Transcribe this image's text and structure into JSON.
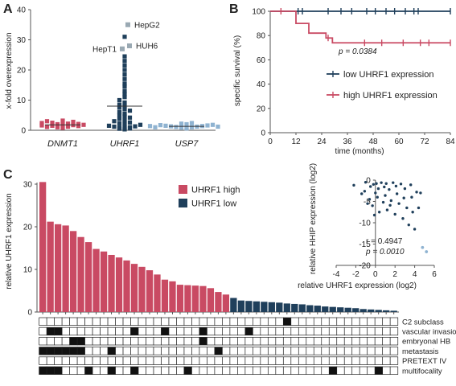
{
  "colors": {
    "red": "#c94a63",
    "navy": "#1f3f5b",
    "light_blue": "#8fb3d1",
    "grey_marker": "#9aa9b3",
    "axis": "#555555"
  },
  "chart_data": [
    {
      "panel": "A",
      "type": "scatter",
      "ylabel": "x-fold overexpression",
      "ylim": [
        0,
        40
      ],
      "yticks": [
        0,
        10,
        20,
        30,
        40
      ],
      "categories": [
        "DNMT1",
        "UHRF1",
        "USP7"
      ],
      "series": [
        {
          "category": "DNMT1",
          "values": [
            0.8,
            1.0,
            1.2,
            1.5,
            1.7,
            1.9,
            2.0,
            2.2,
            2.5,
            2.8,
            3.0,
            3.2,
            1.1,
            1.4,
            1.6,
            1.8,
            2.1,
            2.4
          ],
          "mean": 1.8
        },
        {
          "category": "UHRF1",
          "values": [
            0.3,
            0.5,
            0.6,
            0.8,
            0.9,
            1.0,
            1.2,
            1.3,
            1.5,
            1.8,
            2.0,
            2.3,
            2.6,
            3.0,
            3.3,
            3.8,
            4.2,
            4.6,
            5.0,
            5.5,
            6.0,
            6.5,
            7.0,
            7.5,
            8.0,
            8.5,
            9.2,
            10.0,
            11.0,
            12.0,
            13.0,
            14.5,
            15.5,
            17.0,
            18.5,
            20.0,
            21.5,
            23.0,
            24.5,
            31.0
          ],
          "mean": 8.0,
          "outliers": [
            {
              "label": "HepG2",
              "value": 35
            },
            {
              "label": "HUH6",
              "value": 28
            },
            {
              "label": "HepT1",
              "value": 27
            }
          ]
        },
        {
          "category": "USP7",
          "values": [
            0.6,
            0.8,
            0.9,
            1.0,
            1.1,
            1.2,
            1.3,
            1.4,
            1.5,
            1.6,
            1.7,
            1.8,
            2.0,
            2.2,
            2.4,
            1.0,
            1.2,
            1.4
          ],
          "mean": 1.3
        }
      ]
    },
    {
      "panel": "B",
      "type": "line",
      "xlabel": "time (months)",
      "ylabel": "specific survival (%)",
      "xlim": [
        0,
        84
      ],
      "ylim": [
        0,
        100
      ],
      "xticks": [
        0,
        12,
        24,
        36,
        48,
        60,
        72,
        84
      ],
      "yticks": [
        0,
        20,
        40,
        60,
        80,
        100
      ],
      "annotation": "p = 0.0384",
      "series": [
        {
          "name": "low UHRF1 expression",
          "steps": [
            [
              0,
              100
            ],
            [
              84,
              100
            ]
          ],
          "censor_times": [
            13,
            15,
            27,
            33,
            38,
            45,
            49,
            54,
            58,
            63,
            67,
            69,
            84
          ]
        },
        {
          "name": "high UHRF1 expression",
          "steps": [
            [
              0,
              100
            ],
            [
              12,
              100
            ],
            [
              12,
              90
            ],
            [
              18,
              90
            ],
            [
              18,
              82
            ],
            [
              26,
              82
            ],
            [
              26,
              78
            ],
            [
              29,
              78
            ],
            [
              29,
              74
            ],
            [
              84,
              74
            ]
          ],
          "censor_times": [
            5,
            27,
            44,
            52,
            62,
            70,
            74,
            84
          ]
        }
      ]
    },
    {
      "panel": "C",
      "type": "bar",
      "ylabel": "relative UHRF1 expression",
      "ylim": [
        0,
        30
      ],
      "yticks": [
        0,
        10,
        20,
        30
      ],
      "legend": [
        "UHRF1 high",
        "UHRF1 low"
      ],
      "values": [
        30.5,
        21.2,
        20.6,
        20.3,
        19.0,
        17.6,
        16.4,
        14.8,
        14.2,
        13.4,
        12.8,
        12.1,
        11.3,
        10.6,
        9.8,
        8.8,
        7.6,
        7.2,
        6.4,
        6.3,
        6.2,
        6.1,
        5.6,
        4.7,
        4.1,
        3.3,
        2.7,
        2.6,
        2.5,
        2.4,
        2.3,
        2.2,
        2.0,
        1.9,
        1.8,
        1.6,
        1.5,
        1.3,
        1.2,
        1.1,
        1.0,
        0.9,
        0.7,
        0.6,
        0.5,
        0.4,
        0.3
      ],
      "high_count": 25,
      "row_labels": [
        "C2 subclass",
        "vascular invasion",
        "embryonal HB",
        "metastasis",
        "PRETEXT IV",
        "multifocality"
      ],
      "matrix": [
        [
          0,
          0,
          0,
          0,
          0,
          0,
          0,
          0,
          0,
          0,
          0,
          0,
          0,
          0,
          0,
          0,
          0,
          0,
          0,
          0,
          0,
          0,
          0,
          0,
          0,
          0,
          0,
          0,
          0,
          0,
          0,
          0,
          1,
          0,
          0,
          0,
          0,
          0,
          0,
          0,
          0,
          0,
          0,
          0,
          0,
          0,
          0
        ],
        [
          0,
          1,
          1,
          0,
          0,
          0,
          0,
          0,
          0,
          0,
          0,
          0,
          1,
          0,
          0,
          0,
          1,
          0,
          0,
          0,
          0,
          1,
          0,
          0,
          0,
          0,
          0,
          1,
          0,
          0,
          0,
          0,
          0,
          0,
          0,
          0,
          0,
          0,
          0,
          0,
          0,
          0,
          0,
          0,
          0,
          0,
          0
        ],
        [
          0,
          0,
          0,
          0,
          1,
          1,
          0,
          0,
          0,
          0,
          0,
          0,
          0,
          0,
          0,
          0,
          0,
          0,
          0,
          0,
          0,
          1,
          0,
          0,
          0,
          0,
          0,
          0,
          0,
          0,
          0,
          0,
          0,
          0,
          0,
          0,
          0,
          0,
          0,
          0,
          0,
          0,
          0,
          0,
          0,
          0,
          0
        ],
        [
          1,
          1,
          1,
          1,
          1,
          1,
          0,
          0,
          0,
          1,
          0,
          0,
          0,
          0,
          0,
          0,
          0,
          0,
          0,
          0,
          0,
          0,
          0,
          1,
          0,
          0,
          0,
          0,
          0,
          0,
          0,
          0,
          0,
          0,
          0,
          0,
          0,
          0,
          0,
          0,
          0,
          0,
          0,
          0,
          0,
          0,
          0
        ],
        [
          0,
          0,
          0,
          0,
          0,
          0,
          0,
          0,
          0,
          0,
          0,
          0,
          0,
          0,
          0,
          0,
          0,
          0,
          0,
          0,
          0,
          0,
          0,
          0,
          0,
          0,
          0,
          0,
          0,
          0,
          0,
          0,
          0,
          0,
          0,
          0,
          0,
          0,
          0,
          0,
          0,
          0,
          0,
          0,
          0,
          0,
          0
        ],
        [
          1,
          1,
          1,
          0,
          0,
          0,
          1,
          0,
          0,
          1,
          0,
          0,
          1,
          0,
          0,
          0,
          0,
          0,
          0,
          1,
          0,
          0,
          0,
          0,
          0,
          0,
          0,
          0,
          0,
          0,
          0,
          0,
          0,
          0,
          0,
          0,
          0,
          0,
          1,
          0,
          0,
          0,
          0,
          0,
          1,
          0,
          0
        ]
      ]
    },
    {
      "panel": "C-inset",
      "type": "scatter",
      "xlabel": "relative UHRF1 expression (log2)",
      "ylabel": "relative HHIP expression (log2)",
      "xlim": [
        -4,
        6
      ],
      "ylim": [
        -20,
        0
      ],
      "xticks": [
        -4,
        -2,
        0,
        2,
        4,
        6
      ],
      "yticks": [
        0,
        -5,
        -10,
        -15,
        -20
      ],
      "stats": [
        "r = 0.4947",
        "p = 0.0010"
      ],
      "points": [
        [
          -2.2,
          -1.2
        ],
        [
          -1.0,
          -0.5
        ],
        [
          -0.5,
          -1.5
        ],
        [
          -0.2,
          -1.0
        ],
        [
          0.1,
          -0.8
        ],
        [
          0.3,
          -2.0
        ],
        [
          0.6,
          -0.6
        ],
        [
          0.9,
          -1.6
        ],
        [
          1.1,
          -0.8
        ],
        [
          1.4,
          -2.2
        ],
        [
          1.8,
          -0.6
        ],
        [
          2.1,
          -1.4
        ],
        [
          2.6,
          -0.9
        ],
        [
          3.0,
          -2.0
        ],
        [
          3.6,
          -1.1
        ],
        [
          4.2,
          -2.8
        ],
        [
          4.6,
          -3.0
        ],
        [
          -1.4,
          -3.2
        ],
        [
          -0.6,
          -4.5
        ],
        [
          0.2,
          -4.0
        ],
        [
          0.8,
          -5.2
        ],
        [
          1.6,
          -4.8
        ],
        [
          2.4,
          -5.5
        ],
        [
          3.2,
          -6.5
        ],
        [
          3.8,
          -7.5
        ],
        [
          -0.3,
          -6.0
        ],
        [
          0.4,
          -7.5
        ],
        [
          1.2,
          -7.0
        ],
        [
          2.0,
          -8.0
        ],
        [
          2.8,
          -9.0
        ],
        [
          3.4,
          -10.5
        ],
        [
          4.0,
          -11.5
        ],
        [
          -1.1,
          -2.6
        ],
        [
          -0.8,
          -5.5
        ],
        [
          0.0,
          -3.0
        ],
        [
          1.0,
          -3.6
        ],
        [
          2.2,
          -3.2
        ],
        [
          2.9,
          -4.2
        ],
        [
          3.7,
          -4.0
        ],
        [
          4.4,
          -6.5
        ],
        [
          1.5,
          -5.9
        ],
        [
          -0.1,
          -8.2
        ]
      ],
      "highlight_points": [
        [
          4.8,
          -15.8
        ],
        [
          5.2,
          -16.8
        ]
      ]
    }
  ]
}
